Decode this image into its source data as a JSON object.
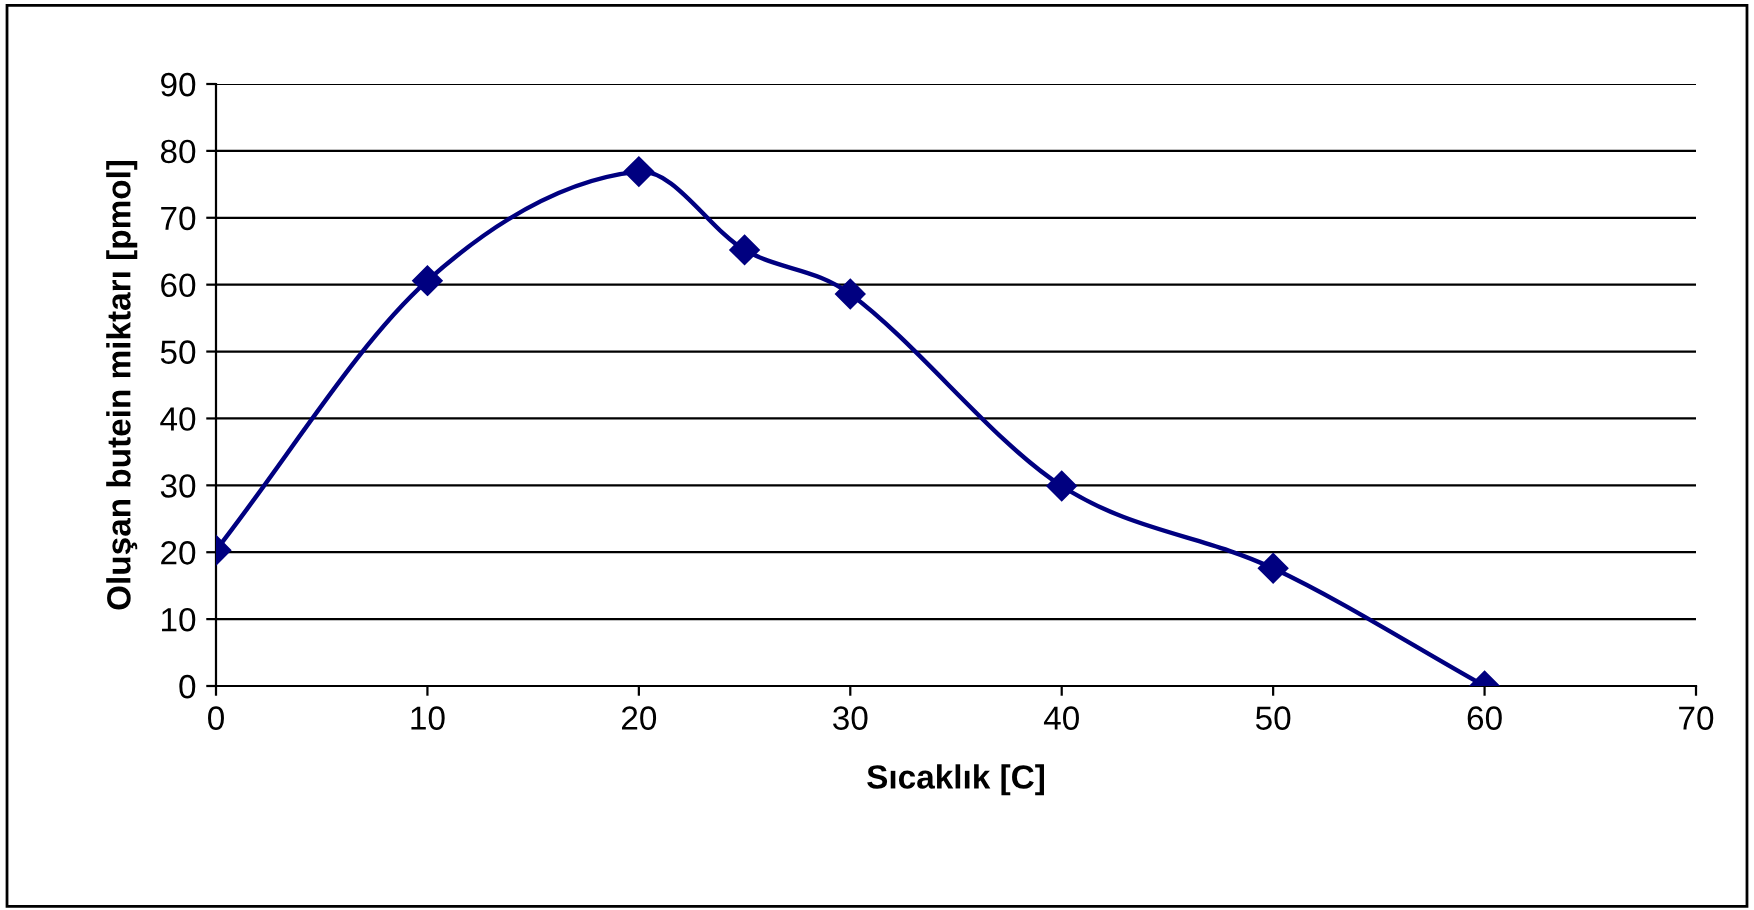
{
  "chart_data": {
    "type": "line",
    "xlabel": "Sıcaklık [C]",
    "ylabel": "Oluşan butein miktarı [pmol]",
    "x": [
      0,
      10,
      20,
      25,
      30,
      40,
      50,
      60
    ],
    "series": [
      {
        "color": "#000080",
        "values": [
          20.3,
          60.6,
          76.9,
          65.2,
          58.6,
          29.9,
          17.6,
          0
        ]
      }
    ],
    "xlim": [
      0,
      70
    ],
    "xticks": [
      0,
      10,
      20,
      30,
      40,
      50,
      60,
      70
    ],
    "ylim": [
      0,
      90
    ],
    "yticks": [
      0,
      10,
      20,
      30,
      40,
      50,
      60,
      70,
      80,
      90
    ],
    "grid": "y",
    "legend": false,
    "marker": "diamond",
    "line_style": "solid"
  }
}
